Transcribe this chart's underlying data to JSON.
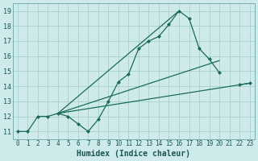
{
  "xlabel": "Humidex (Indice chaleur)",
  "xlim": [
    -0.5,
    23.5
  ],
  "ylim": [
    10.5,
    19.5
  ],
  "xticks": [
    0,
    1,
    2,
    3,
    4,
    5,
    6,
    7,
    8,
    9,
    10,
    11,
    12,
    13,
    14,
    15,
    16,
    17,
    18,
    19,
    20,
    21,
    22,
    23
  ],
  "yticks": [
    11,
    12,
    13,
    14,
    15,
    16,
    17,
    18,
    19
  ],
  "background_color": "#ceeaeb",
  "grid_color": "#aacfcf",
  "line_color": "#1a6b5a",
  "main_line": {
    "x": [
      0,
      1,
      2,
      3,
      4,
      5,
      6,
      7,
      8,
      9,
      10,
      11,
      12,
      13,
      14,
      15,
      16,
      17,
      18,
      19,
      20,
      21,
      22,
      23
    ],
    "y": [
      11,
      11,
      12,
      12,
      12.2,
      12,
      11.5,
      11,
      11.8,
      13,
      14.3,
      14.8,
      16.5,
      17,
      17.3,
      18.1,
      19.0,
      18.5,
      16.5,
      15.8,
      14.9,
      null,
      14.1,
      14.2
    ],
    "marker": "D",
    "markersize": 2.0,
    "linewidth": 0.9
  },
  "trend_lines": [
    {
      "x": [
        4,
        16
      ],
      "y": [
        12.2,
        19.0
      ]
    },
    {
      "x": [
        4,
        20
      ],
      "y": [
        12.2,
        15.7
      ]
    },
    {
      "x": [
        4,
        23
      ],
      "y": [
        12.2,
        14.2
      ]
    }
  ],
  "tick_fontsize": 5.5,
  "xlabel_fontsize": 7.0,
  "xlabel_fontweight": "bold"
}
